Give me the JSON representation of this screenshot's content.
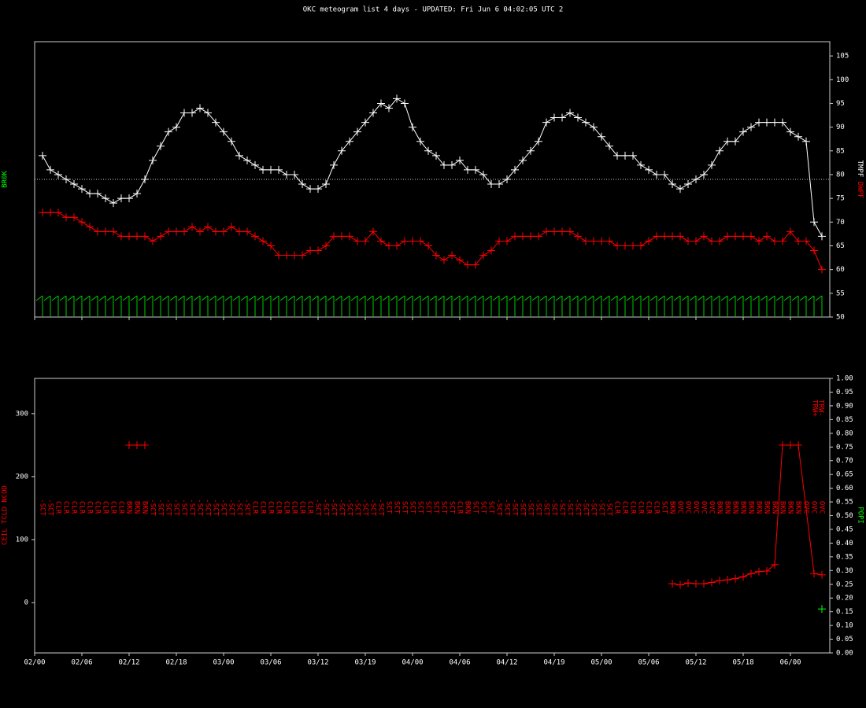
{
  "chart_data": [
    {
      "type": "line",
      "title": "OKC meteogram list 4 days - UPDATED: Fri Jun 6 04:02:05 UTC 2",
      "ylabel": "BR0K",
      "x": [
        1,
        2,
        3,
        4,
        5,
        6,
        7,
        8,
        9,
        10,
        11,
        12,
        13,
        14,
        15,
        16,
        17,
        18,
        19,
        20,
        21,
        22,
        23,
        24,
        25,
        26,
        27,
        28,
        29,
        30,
        31,
        32,
        33,
        34,
        35,
        36,
        37,
        38,
        39,
        40,
        41,
        42,
        43,
        44,
        45,
        46,
        47,
        48,
        49,
        50,
        51,
        52,
        53,
        54,
        55,
        56,
        57,
        58,
        59,
        60,
        61,
        62,
        63,
        64,
        65,
        66,
        67,
        68,
        69,
        70,
        71,
        72,
        73,
        74,
        75,
        76,
        77,
        78,
        79,
        80,
        81,
        82,
        83,
        84,
        85,
        86,
        87,
        88,
        89,
        90,
        91,
        92,
        93,
        94,
        95,
        96,
        97,
        98,
        99,
        100
      ],
      "xlim": [
        0,
        101
      ],
      "ylim": [
        50,
        108
      ],
      "yticks": [
        50,
        55,
        60,
        65,
        70,
        75,
        80,
        85,
        90,
        95,
        100,
        105
      ],
      "reference_line": 79,
      "series": [
        {
          "name": "TMPF",
          "color": "#ffffff",
          "values": [
            84,
            81,
            80,
            79,
            78,
            77,
            76,
            76,
            75,
            74,
            75,
            75,
            76,
            79,
            83,
            86,
            89,
            90,
            93,
            93,
            94,
            93,
            91,
            89,
            87,
            84,
            83,
            82,
            81,
            81,
            81,
            80,
            80,
            78,
            77,
            77,
            78,
            82,
            85,
            87,
            89,
            91,
            93,
            95,
            94,
            96,
            95,
            90,
            87,
            85,
            84,
            82,
            82,
            83,
            81,
            81,
            80,
            78,
            78,
            79,
            81,
            83,
            85,
            87,
            91,
            92,
            92,
            93,
            92,
            91,
            90,
            88,
            86,
            84,
            84,
            84,
            82,
            81,
            80,
            80,
            78,
            77,
            78,
            79,
            80,
            82,
            85,
            87,
            87,
            89,
            90,
            91,
            91,
            91,
            91,
            89,
            88,
            87,
            70,
            67
          ]
        },
        {
          "name": "DWPF",
          "color": "#ff0000",
          "values": [
            72,
            72,
            72,
            71,
            71,
            70,
            69,
            68,
            68,
            68,
            67,
            67,
            67,
            67,
            66,
            67,
            68,
            68,
            68,
            69,
            68,
            69,
            68,
            68,
            69,
            68,
            68,
            67,
            66,
            65,
            63,
            63,
            63,
            63,
            64,
            64,
            65,
            67,
            67,
            67,
            66,
            66,
            68,
            66,
            65,
            65,
            66,
            66,
            66,
            65,
            63,
            62,
            63,
            62,
            61,
            61,
            63,
            64,
            66,
            66,
            67,
            67,
            67,
            67,
            68,
            68,
            68,
            68,
            67,
            66,
            66,
            66,
            66,
            65,
            65,
            65,
            65,
            66,
            67,
            67,
            67,
            67,
            66,
            66,
            67,
            66,
            66,
            67,
            67,
            67,
            67,
            66,
            67,
            66,
            66,
            68,
            66,
            66,
            64,
            60
          ]
        }
      ]
    },
    {
      "type": "line",
      "ylabel": "CEIL TCLD NCOD",
      "y2label": "POPI",
      "annotation": [
        "TRW+",
        "TRW-"
      ],
      "x": [
        1,
        2,
        3,
        4,
        5,
        6,
        7,
        8,
        9,
        10,
        11,
        12,
        13,
        14,
        15,
        16,
        17,
        18,
        19,
        20,
        21,
        22,
        23,
        24,
        25,
        26,
        27,
        28,
        29,
        30,
        31,
        32,
        33,
        34,
        35,
        36,
        37,
        38,
        39,
        40,
        41,
        42,
        43,
        44,
        45,
        46,
        47,
        48,
        49,
        50,
        51,
        52,
        53,
        54,
        55,
        56,
        57,
        58,
        59,
        60,
        61,
        62,
        63,
        64,
        65,
        66,
        67,
        68,
        69,
        70,
        71,
        72,
        73,
        74,
        75,
        76,
        77,
        78,
        79,
        80,
        81,
        82,
        83,
        84,
        85,
        86,
        87,
        88,
        89,
        90,
        91,
        92,
        93,
        94,
        95,
        96,
        97,
        98,
        99,
        100
      ],
      "sky_cover": [
        "-SCT",
        "-SCT",
        "CLR",
        "CLR",
        "CLR",
        "CLR",
        "CLR",
        "CLR",
        "CLR",
        "CLR",
        "CLR",
        "BKN",
        "BKN",
        "BKN",
        "-SCT",
        "-SCT",
        "-SCT",
        "-SCT",
        "-SCT",
        "-SCT",
        "-SCT",
        "-SCT",
        "-SCT",
        "-SCT",
        "-SCT",
        "-SCT",
        "-SCT",
        "CLR",
        "CLR",
        "CLR",
        "CLR",
        "CLR",
        "CLR",
        "CLR",
        "CLR",
        "-SCT",
        "-SCT",
        "-SCT",
        "-SCT",
        "-SCT",
        "-SCT",
        "-SCT",
        "-SCT",
        "-SCT",
        "SCT",
        "SCT",
        "SCT",
        "SCT",
        "SCT",
        "SCT",
        "SCT",
        "SCT",
        "SCT",
        "CLR",
        "BKN",
        "SCT",
        "SCT",
        "SCT",
        "-SCT",
        "-SCT",
        "-SCT",
        "-SCT",
        "-SCT",
        "-SCT",
        "-SCT",
        "-SCT",
        "-SCT",
        "-SCT",
        "-SCT",
        "-SCT",
        "-SCT",
        "-SCT",
        "-SCT",
        "CLR",
        "CLR",
        "CLR",
        "CLR",
        "CLR",
        "CLR",
        "SCT",
        "BKN",
        "OVC",
        "OVC",
        "OVC",
        "OVC",
        "OVC",
        "BKN",
        "BKN",
        "BKN",
        "BKN",
        "BKN",
        "BKN",
        "BKN",
        "BKN",
        "BKN",
        "BKN",
        "BKN",
        "OVC",
        "OVC",
        "OVC"
      ],
      "xlim": [
        0,
        101
      ],
      "xticks": [
        {
          "value": 0,
          "label": "02/00"
        },
        {
          "value": 6,
          "label": "02/06"
        },
        {
          "value": 12,
          "label": "02/12"
        },
        {
          "value": 18,
          "label": "02/18"
        },
        {
          "value": 24,
          "label": "03/00"
        },
        {
          "value": 30,
          "label": "03/06"
        },
        {
          "value": 36,
          "label": "03/12"
        },
        {
          "value": 42,
          "label": "03/19"
        },
        {
          "value": 48,
          "label": "04/00"
        },
        {
          "value": 54,
          "label": "04/06"
        },
        {
          "value": 60,
          "label": "04/12"
        },
        {
          "value": 66,
          "label": "04/19"
        },
        {
          "value": 72,
          "label": "05/00"
        },
        {
          "value": 78,
          "label": "05/06"
        },
        {
          "value": 84,
          "label": "05/12"
        },
        {
          "value": 90,
          "label": "05/18"
        },
        {
          "value": 96,
          "label": "06/00"
        }
      ],
      "ylim": [
        -80,
        356
      ],
      "yticks": [
        0,
        100,
        200,
        300
      ],
      "y2lim": [
        0,
        1
      ],
      "y2ticks": [
        {
          "value": 0,
          "label": "0.00"
        },
        {
          "value": 0.05,
          "label": "0.05"
        },
        {
          "value": 0.1,
          "label": "0.10"
        },
        {
          "value": 0.15,
          "label": "0.15"
        },
        {
          "value": 0.2,
          "label": "0.20"
        },
        {
          "value": 0.25,
          "label": "0.25"
        },
        {
          "value": 0.3,
          "label": "0.30"
        },
        {
          "value": 0.35,
          "label": "0.35"
        },
        {
          "value": 0.4,
          "label": "0.40"
        },
        {
          "value": 0.45,
          "label": "0.45"
        },
        {
          "value": 0.5,
          "label": "0.50"
        },
        {
          "value": 0.55,
          "label": "0.55"
        },
        {
          "value": 0.6,
          "label": "0.60"
        },
        {
          "value": 0.65,
          "label": "0.65"
        },
        {
          "value": 0.7,
          "label": "0.70"
        },
        {
          "value": 0.75,
          "label": "0.75"
        },
        {
          "value": 0.8,
          "label": "0.80"
        },
        {
          "value": 0.85,
          "label": "0.85"
        },
        {
          "value": 0.9,
          "label": "0.90"
        },
        {
          "value": 0.95,
          "label": "0.95"
        },
        {
          "value": 1,
          "label": "1.00"
        }
      ],
      "series": [
        {
          "color": "#ff0000",
          "x": [
            12,
            13,
            14
          ],
          "values": [
            250,
            250,
            250
          ]
        },
        {
          "color": "#ff0000",
          "x": [
            81,
            82,
            83,
            84,
            85,
            86,
            87,
            88,
            89,
            90,
            91,
            92,
            93,
            94,
            95,
            96,
            97,
            99,
            100
          ],
          "values": [
            30,
            28,
            31,
            30,
            30,
            32,
            35,
            36,
            38,
            41,
            46,
            49,
            50,
            60,
            250,
            250,
            250,
            46,
            44
          ]
        },
        {
          "color": "#00ff00",
          "axis": "y2",
          "x": [
            100
          ],
          "values": [
            0.16
          ]
        }
      ]
    }
  ]
}
